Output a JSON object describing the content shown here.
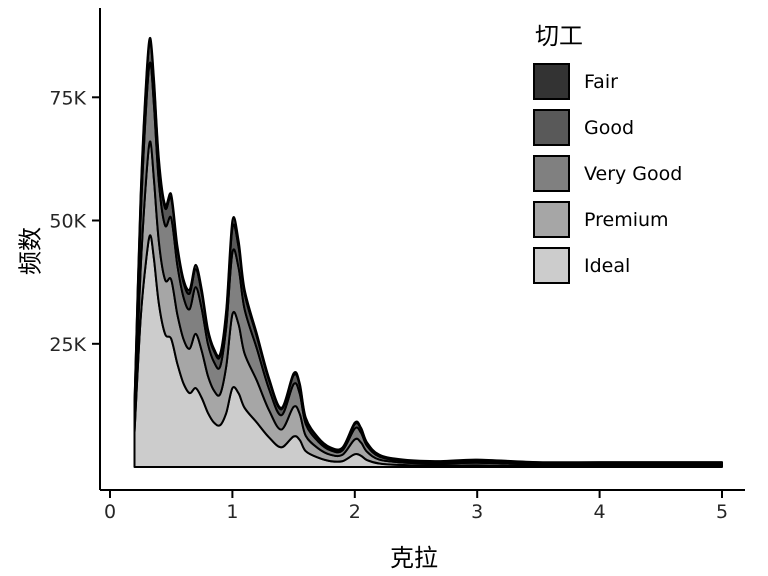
{
  "chart_data": {
    "type": "area",
    "stacked": true,
    "title": "",
    "xlabel": "克拉",
    "ylabel": "频数",
    "legend_title": "切工",
    "legend_position": "right-top",
    "grid": false,
    "background": "#ffffff",
    "axis_color": "#000000",
    "tick_label_color": "#262626",
    "xlim": [
      0,
      5
    ],
    "ylim": [
      0,
      90000
    ],
    "x_ticks": [
      {
        "value": 0,
        "label": "0"
      },
      {
        "value": 1,
        "label": "1"
      },
      {
        "value": 2,
        "label": "2"
      },
      {
        "value": 3,
        "label": "3"
      },
      {
        "value": 4,
        "label": "4"
      },
      {
        "value": 5,
        "label": "5"
      }
    ],
    "y_ticks": [
      {
        "value": 25000,
        "label": "25K"
      },
      {
        "value": 50000,
        "label": "50K"
      },
      {
        "value": 75000,
        "label": "75K"
      }
    ],
    "stack_order": "bottom-to-top",
    "legend_order": [
      "Fair",
      "Good",
      "Very Good",
      "Premium",
      "Ideal"
    ],
    "x": [
      0.2,
      0.25,
      0.3,
      0.33,
      0.36,
      0.4,
      0.45,
      0.5,
      0.55,
      0.6,
      0.65,
      0.7,
      0.75,
      0.8,
      0.85,
      0.9,
      0.95,
      1.0,
      1.05,
      1.1,
      1.2,
      1.3,
      1.4,
      1.5,
      1.55,
      1.6,
      1.7,
      1.8,
      1.9,
      2.0,
      2.05,
      2.1,
      2.2,
      2.4,
      2.7,
      3.0,
      3.5,
      4.0,
      4.5,
      5.0
    ],
    "series": [
      {
        "name": "Ideal",
        "color": "#cccccc",
        "values": [
          7000,
          30000,
          43000,
          47000,
          42000,
          33000,
          27000,
          26000,
          21000,
          17000,
          15000,
          16000,
          14000,
          11000,
          9000,
          8500,
          11000,
          16000,
          15000,
          12000,
          9000,
          6000,
          4000,
          6200,
          5500,
          3200,
          1900,
          1200,
          1200,
          2600,
          2300,
          1400,
          700,
          400,
          300,
          350,
          200,
          200,
          200,
          200
        ]
      },
      {
        "name": "Premium",
        "color": "#a6a6a6",
        "values": [
          2500,
          10000,
          17000,
          19000,
          16000,
          12500,
          11000,
          12000,
          10000,
          9000,
          9000,
          11000,
          9500,
          7500,
          6500,
          6300,
          9500,
          15000,
          14000,
          11000,
          8500,
          5500,
          3600,
          6000,
          5300,
          3100,
          1900,
          1300,
          1300,
          3000,
          2700,
          1700,
          800,
          500,
          400,
          500,
          350,
          350,
          350,
          350
        ]
      },
      {
        "name": "Very Good",
        "color": "#808080",
        "values": [
          2500,
          10000,
          15000,
          16000,
          15000,
          12000,
          11000,
          12500,
          10000,
          8500,
          8000,
          9500,
          8500,
          6500,
          5800,
          5600,
          8000,
          12500,
          11500,
          9000,
          6500,
          4300,
          2900,
          4600,
          4100,
          2400,
          1400,
          900,
          900,
          2200,
          2000,
          1200,
          600,
          350,
          300,
          350,
          250,
          250,
          250,
          250
        ]
      },
      {
        "name": "Good",
        "color": "#595959",
        "values": [
          800,
          4000,
          4500,
          4200,
          4500,
          4000,
          3500,
          4000,
          3300,
          3000,
          3200,
          3600,
          3200,
          2400,
          2200,
          2100,
          2800,
          5000,
          4200,
          3200,
          2400,
          1700,
          1200,
          1800,
          1700,
          1000,
          600,
          400,
          400,
          900,
          800,
          500,
          300,
          150,
          120,
          200,
          120,
          120,
          120,
          120
        ]
      },
      {
        "name": "Fair",
        "color": "#333333",
        "values": [
          200,
          1000,
          900,
          800,
          900,
          800,
          700,
          800,
          700,
          700,
          800,
          900,
          800,
          600,
          500,
          500,
          700,
          1500,
          1300,
          800,
          600,
          500,
          300,
          400,
          400,
          300,
          200,
          200,
          200,
          300,
          200,
          200,
          100,
          100,
          80,
          100,
          80,
          80,
          80,
          80
        ]
      }
    ]
  }
}
